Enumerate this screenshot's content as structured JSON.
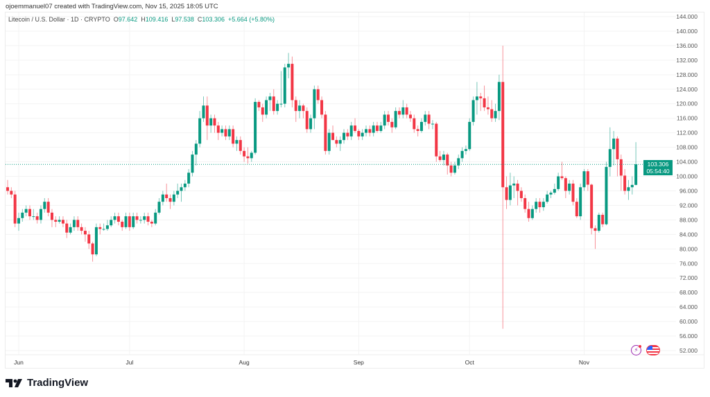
{
  "credit": "ojoemmanuel07 created with TradingView.com, Nov 15, 2025 18:05 UTC",
  "legend": {
    "symbol": "Litecoin / U.S. Dollar · 1D · CRYPTO",
    "o_label": "O",
    "o": "97.642",
    "h_label": "H",
    "h": "109.416",
    "l_label": "L",
    "l": "97.538",
    "c_label": "C",
    "c": "103.306",
    "change": "+5.664 (+5.80%)"
  },
  "last_price": {
    "value": "103.306",
    "countdown": "05:54:40"
  },
  "brand": "TradingView",
  "icons": {
    "flash": "lightning-icon",
    "flag": "us-flag-icon"
  },
  "colors": {
    "up": "#089981",
    "down": "#f23645",
    "grid": "#f3f3f3",
    "axis_text": "#555555"
  },
  "chart_data": {
    "type": "candlestick",
    "title": "Litecoin / U.S. Dollar · 1D · CRYPTO",
    "start_date": "2025-05-29",
    "interval": "1D",
    "ylim": [
      50,
      146
    ],
    "y_ticks": [
      "52.000",
      "56.000",
      "60.000",
      "64.000",
      "68.000",
      "72.000",
      "76.000",
      "80.000",
      "84.000",
      "88.000",
      "92.000",
      "96.000",
      "100.000",
      "104.000",
      "108.000",
      "112.000",
      "116.000",
      "120.000",
      "124.000",
      "128.000",
      "132.000",
      "136.000",
      "140.000",
      "144.000"
    ],
    "x_ticks": [
      {
        "label": "Jun",
        "index": 3
      },
      {
        "label": "Jul",
        "index": 33
      },
      {
        "label": "Aug",
        "index": 64
      },
      {
        "label": "Sep",
        "index": 95
      },
      {
        "label": "Oct",
        "index": 125
      },
      {
        "label": "Nov",
        "index": 156
      }
    ],
    "grid": true,
    "last_price": 103.306,
    "candles_ohlc": [
      [
        97,
        99,
        95,
        96
      ],
      [
        96,
        97,
        94,
        95
      ],
      [
        95,
        96,
        86,
        87
      ],
      [
        87,
        90,
        85,
        88.5
      ],
      [
        88.5,
        91,
        87.5,
        90
      ],
      [
        90,
        92,
        89,
        91
      ],
      [
        91,
        92,
        88,
        89
      ],
      [
        89,
        91,
        88,
        89
      ],
      [
        89,
        90,
        87,
        88
      ],
      [
        88,
        92,
        87,
        91
      ],
      [
        91,
        94,
        90,
        93
      ],
      [
        93,
        94,
        89,
        90
      ],
      [
        90,
        91,
        86,
        88
      ],
      [
        88,
        89,
        86,
        87.5
      ],
      [
        87.5,
        89,
        87,
        88
      ],
      [
        88,
        89,
        86,
        87
      ],
      [
        87,
        88,
        83,
        84.5
      ],
      [
        84.5,
        87,
        84,
        86
      ],
      [
        86,
        89,
        85,
        88
      ],
      [
        88,
        89,
        85,
        86
      ],
      [
        86,
        87,
        84,
        85
      ],
      [
        85,
        86,
        82,
        84
      ],
      [
        84,
        85,
        80,
        81.5
      ],
      [
        81.5,
        82,
        76.5,
        78.5
      ],
      [
        78.5,
        87,
        78,
        86
      ],
      [
        86,
        87,
        84,
        85.5
      ],
      [
        85.5,
        87,
        85,
        85.5
      ],
      [
        85.5,
        88,
        85,
        86.5
      ],
      [
        86.5,
        89,
        86,
        88
      ],
      [
        88,
        90,
        87,
        89
      ],
      [
        89,
        90,
        86.5,
        87.5
      ],
      [
        87.5,
        88,
        85,
        86
      ],
      [
        86,
        90,
        85.5,
        89
      ],
      [
        89,
        90,
        85,
        86
      ],
      [
        86,
        90,
        85.5,
        89
      ],
      [
        89,
        90,
        87,
        88
      ],
      [
        88,
        89,
        87,
        88
      ],
      [
        88,
        90,
        87,
        89
      ],
      [
        89,
        90,
        86.5,
        87.5
      ],
      [
        87.5,
        88,
        86,
        87
      ],
      [
        87,
        91,
        86.5,
        90
      ],
      [
        90,
        94,
        89.5,
        93
      ],
      [
        93,
        96,
        92,
        95
      ],
      [
        95,
        98,
        93,
        94
      ],
      [
        94,
        95,
        91,
        93
      ],
      [
        93,
        96,
        92,
        95
      ],
      [
        95,
        98,
        94,
        96
      ],
      [
        96,
        98,
        93,
        97
      ],
      [
        97,
        99,
        96,
        98
      ],
      [
        98,
        102,
        97,
        101
      ],
      [
        101,
        107,
        100,
        106
      ],
      [
        106,
        110,
        103,
        109
      ],
      [
        109,
        118,
        108,
        116
      ],
      [
        116,
        122,
        115,
        119.5
      ],
      [
        119.5,
        122,
        110,
        114
      ],
      [
        114,
        117,
        112,
        116
      ],
      [
        116,
        117,
        112,
        114
      ],
      [
        114,
        115,
        110,
        112
      ],
      [
        112,
        114,
        111,
        113
      ],
      [
        113,
        114,
        110,
        111
      ],
      [
        111,
        114,
        110,
        113
      ],
      [
        113,
        114,
        108,
        109
      ],
      [
        109,
        111,
        107,
        110
      ],
      [
        110,
        111,
        106,
        107
      ],
      [
        107,
        108,
        104,
        105.5
      ],
      [
        105.5,
        108,
        103.5,
        105
      ],
      [
        105,
        107,
        104,
        106.5
      ],
      [
        106.5,
        121.5,
        106,
        120.5
      ],
      [
        120.5,
        121,
        118,
        119
      ],
      [
        119,
        120,
        115,
        117
      ],
      [
        117,
        122,
        116,
        121
      ],
      [
        121,
        123,
        118,
        122
      ],
      [
        122,
        124,
        117,
        118
      ],
      [
        118,
        121,
        117,
        120
      ],
      [
        120,
        129,
        119,
        120
      ],
      [
        120,
        131,
        119,
        130
      ],
      [
        130,
        134,
        127,
        131
      ],
      [
        131,
        133,
        119,
        121
      ],
      [
        121,
        122,
        115,
        118
      ],
      [
        118,
        121,
        116,
        119.5
      ],
      [
        119.5,
        120,
        116,
        118
      ],
      [
        118,
        119,
        112,
        113
      ],
      [
        113,
        117,
        112,
        116
      ],
      [
        116,
        125,
        113,
        124
      ],
      [
        124,
        125,
        120,
        121
      ],
      [
        121,
        122,
        116,
        117
      ],
      [
        117,
        118,
        106,
        107
      ],
      [
        107,
        113,
        106,
        112
      ],
      [
        112,
        114,
        110,
        110
      ],
      [
        110,
        111,
        108,
        109
      ],
      [
        109,
        111,
        107,
        110
      ],
      [
        110,
        113,
        109,
        112
      ],
      [
        112,
        113,
        110,
        111
      ],
      [
        111,
        115,
        110,
        114
      ],
      [
        114,
        116,
        112,
        112.5
      ],
      [
        112.5,
        113,
        110,
        111
      ],
      [
        111,
        113,
        110,
        112
      ],
      [
        112,
        114,
        111,
        113
      ],
      [
        113,
        114,
        111,
        112
      ],
      [
        112,
        115,
        111,
        114
      ],
      [
        114,
        115,
        112,
        112.5
      ],
      [
        112.5,
        115,
        112,
        114
      ],
      [
        114,
        118,
        113,
        117
      ],
      [
        117,
        118,
        114,
        115
      ],
      [
        115,
        116,
        112,
        113.5
      ],
      [
        113.5,
        119,
        113,
        118
      ],
      [
        118,
        119,
        116,
        117
      ],
      [
        117,
        121,
        116,
        119
      ],
      [
        119,
        120,
        116,
        117
      ],
      [
        117,
        118,
        115,
        116
      ],
      [
        116,
        117,
        112,
        113
      ],
      [
        113,
        114,
        111,
        112.5
      ],
      [
        112.5,
        116,
        112,
        115
      ],
      [
        115,
        118,
        114,
        117
      ],
      [
        117,
        118,
        113,
        114.5
      ],
      [
        114.5,
        115.5,
        113,
        114.5
      ],
      [
        114.5,
        115,
        104,
        105.5
      ],
      [
        105.5,
        107,
        104,
        104.5
      ],
      [
        104.5,
        107,
        103,
        106
      ],
      [
        106,
        106.5,
        100.5,
        103
      ],
      [
        103,
        104,
        100,
        101
      ],
      [
        101,
        104,
        100.5,
        103
      ],
      [
        103,
        106,
        102,
        105
      ],
      [
        105,
        108,
        104,
        107
      ],
      [
        107,
        108.5,
        106,
        107.5
      ],
      [
        107.5,
        116,
        107,
        115
      ],
      [
        115,
        122,
        114,
        121
      ],
      [
        121,
        126,
        117,
        122
      ],
      [
        122,
        123,
        118,
        121.5
      ],
      [
        121.5,
        125,
        118,
        119
      ],
      [
        119,
        122,
        117,
        118.5
      ],
      [
        118.5,
        121,
        115,
        116
      ],
      [
        116,
        120,
        115,
        118
      ],
      [
        118,
        128,
        115.5,
        126
      ],
      [
        126,
        136,
        58,
        97
      ],
      [
        97,
        100,
        91,
        93.5
      ],
      [
        93.5,
        101,
        92,
        97.5
      ],
      [
        97.5,
        100,
        94,
        98
      ],
      [
        98,
        99,
        92,
        96
      ],
      [
        96,
        97,
        93,
        94
      ],
      [
        94,
        95,
        90,
        91
      ],
      [
        91,
        93,
        87.5,
        88.5
      ],
      [
        88.5,
        92,
        88,
        91
      ],
      [
        91,
        94,
        90,
        93
      ],
      [
        93,
        94,
        90,
        91.5
      ],
      [
        91.5,
        94,
        90.5,
        93
      ],
      [
        93,
        96,
        92.5,
        95
      ],
      [
        95,
        96,
        94,
        95.5
      ],
      [
        95.5,
        98,
        95,
        96.5
      ],
      [
        96.5,
        101,
        96,
        100
      ],
      [
        100,
        104,
        99,
        99.5
      ],
      [
        99.5,
        100,
        94,
        96
      ],
      [
        96,
        99,
        95,
        98
      ],
      [
        98,
        99,
        92,
        93
      ],
      [
        93,
        94,
        88.5,
        89
      ],
      [
        89,
        98,
        88,
        97
      ],
      [
        97,
        102,
        96,
        101.4
      ],
      [
        101.4,
        102,
        96,
        97.7
      ],
      [
        97.7,
        98,
        84,
        85.7
      ],
      [
        85.7,
        86.5,
        80,
        85
      ],
      [
        85,
        90,
        84.5,
        89.4
      ],
      [
        89.4,
        90,
        86,
        86.8
      ],
      [
        86.8,
        104,
        86.5,
        102.6
      ],
      [
        102.6,
        113.5,
        100,
        107.5
      ],
      [
        107.5,
        112.5,
        103,
        110.4
      ],
      [
        110.4,
        111,
        100,
        104.7
      ],
      [
        104.7,
        106,
        96,
        100.2
      ],
      [
        100.2,
        102,
        95,
        96
      ],
      [
        96,
        99,
        93.5,
        97
      ],
      [
        97,
        100,
        95,
        97.642
      ],
      [
        97.642,
        109.416,
        97.538,
        103.306
      ]
    ]
  }
}
